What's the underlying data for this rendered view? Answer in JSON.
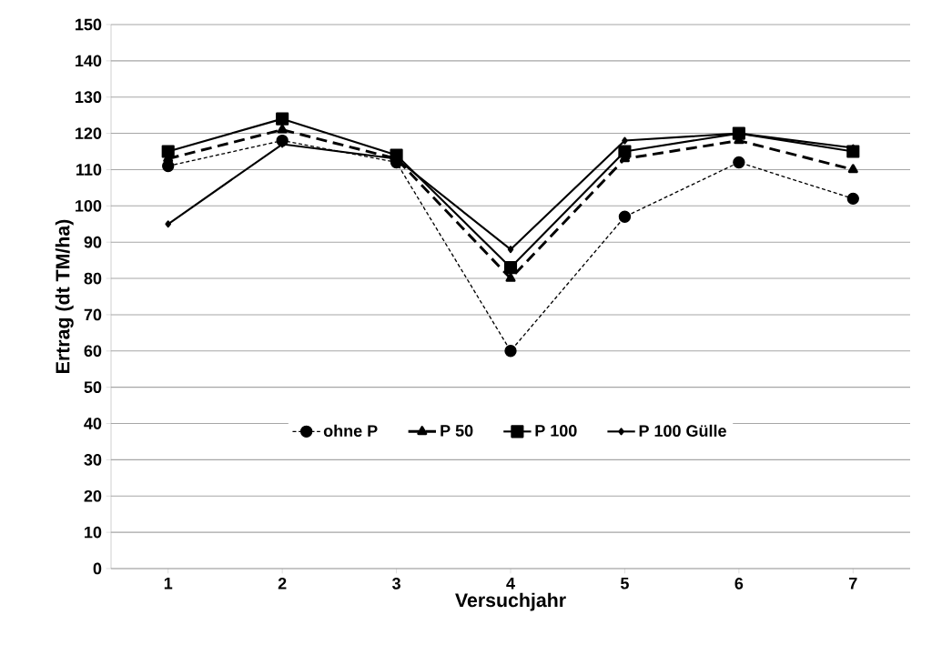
{
  "chart_data": {
    "type": "line",
    "xlabel": "Versuchjahr",
    "ylabel": "Ertrag (dt TM/ha)",
    "categories": [
      "1",
      "2",
      "3",
      "4",
      "5",
      "6",
      "7"
    ],
    "series": [
      {
        "name": "ohne P",
        "color": "#000000",
        "marker": "circle",
        "line_style": "dotted",
        "values": [
          111,
          118,
          112,
          60,
          97,
          112,
          102
        ]
      },
      {
        "name": "P 50",
        "color": "#000000",
        "marker": "triangle",
        "line_style": "dashed",
        "values": [
          113,
          121,
          113,
          80,
          113,
          118,
          110
        ]
      },
      {
        "name": "P 100",
        "color": "#000000",
        "marker": "square",
        "line_style": "solid",
        "values": [
          115,
          124,
          114,
          83,
          115,
          120,
          115
        ]
      },
      {
        "name": "P 100 Gülle",
        "color": "#000000",
        "marker": "diamond",
        "line_style": "solid",
        "values": [
          95,
          117,
          113,
          88,
          118,
          120,
          116
        ]
      }
    ],
    "ylim": [
      0,
      150
    ],
    "yticks": [
      0,
      10,
      20,
      30,
      40,
      50,
      60,
      70,
      80,
      90,
      100,
      110,
      120,
      130,
      140,
      150
    ],
    "grid": "y",
    "legend": "bottom"
  }
}
